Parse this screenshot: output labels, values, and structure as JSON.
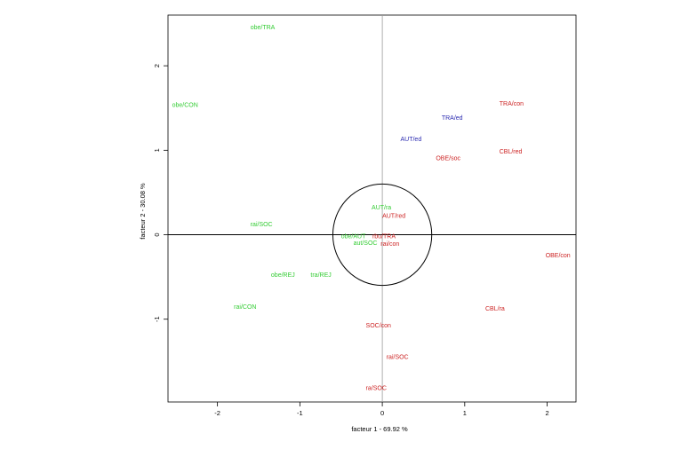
{
  "chart_data": {
    "type": "scatter",
    "title": "",
    "xlabel": "facteur 1 - 69.92 %",
    "ylabel": "facteur 2 - 30.08 %",
    "xlim": [
      -2.6,
      2.35
    ],
    "ylim": [
      -1.98,
      2.6
    ],
    "x_ticks": [
      -2,
      -1,
      0,
      1,
      2
    ],
    "y_ticks": [
      -1,
      0,
      1,
      2
    ],
    "x_tick_labels": [
      "-2",
      "-1",
      "0",
      "1",
      "2"
    ],
    "y_tick_labels": [
      "-1",
      "0",
      "1",
      "2"
    ],
    "reference_lines": {
      "horizontal": 0,
      "vertical": 0
    },
    "circle": {
      "center": [
        0,
        0
      ],
      "radius": 0.6
    },
    "colors": {
      "green": "#33cc33",
      "blue": "#2a2ab0",
      "red": "#cc2222",
      "axis": "#000000",
      "frame": "#000000",
      "refline": "#000000",
      "vline": "#999999"
    },
    "points": [
      {
        "label": "obe/TRA",
        "x": -1.6,
        "y": 2.45,
        "color": "green"
      },
      {
        "label": "obe/CON",
        "x": -2.55,
        "y": 1.53,
        "color": "green"
      },
      {
        "label": "rai/SOC",
        "x": -1.6,
        "y": 0.12,
        "color": "green"
      },
      {
        "label": "AUT/ra",
        "x": -0.13,
        "y": 0.32,
        "color": "green"
      },
      {
        "label": "obe/AUT",
        "x": -0.5,
        "y": -0.02,
        "color": "green"
      },
      {
        "label": "aut/SOC",
        "x": -0.35,
        "y": -0.1,
        "color": "green"
      },
      {
        "label": "obe/REJ",
        "x": -1.35,
        "y": -0.48,
        "color": "green"
      },
      {
        "label": "tra/REJ",
        "x": -0.87,
        "y": -0.48,
        "color": "green"
      },
      {
        "label": "rai/CON",
        "x": -1.8,
        "y": -0.86,
        "color": "green"
      },
      {
        "label": "TRA/ed",
        "x": 0.72,
        "y": 1.38,
        "color": "blue"
      },
      {
        "label": "AUT/ed",
        "x": 0.22,
        "y": 1.13,
        "color": "blue"
      },
      {
        "label": "TRA/con",
        "x": 1.42,
        "y": 1.55,
        "color": "red"
      },
      {
        "label": "OBE/soc",
        "x": 0.65,
        "y": 0.9,
        "color": "red"
      },
      {
        "label": "CBL/red",
        "x": 1.42,
        "y": 0.98,
        "color": "red"
      },
      {
        "label": "AUT/red",
        "x": 0.0,
        "y": 0.22,
        "color": "red"
      },
      {
        "label": "rbu/TRA",
        "x": -0.12,
        "y": -0.02,
        "color": "red"
      },
      {
        "label": "rai/con",
        "x": -0.02,
        "y": -0.11,
        "color": "red"
      },
      {
        "label": "OBE/con",
        "x": 1.98,
        "y": -0.25,
        "color": "red"
      },
      {
        "label": "CBL/ra",
        "x": 1.25,
        "y": -0.88,
        "color": "red"
      },
      {
        "label": "SOC/con",
        "x": -0.2,
        "y": -1.08,
        "color": "red"
      },
      {
        "label": "rai/SOC",
        "x": 0.05,
        "y": -1.45,
        "color": "red"
      },
      {
        "label": "ra/SOC",
        "x": -0.2,
        "y": -1.82,
        "color": "red"
      }
    ]
  }
}
